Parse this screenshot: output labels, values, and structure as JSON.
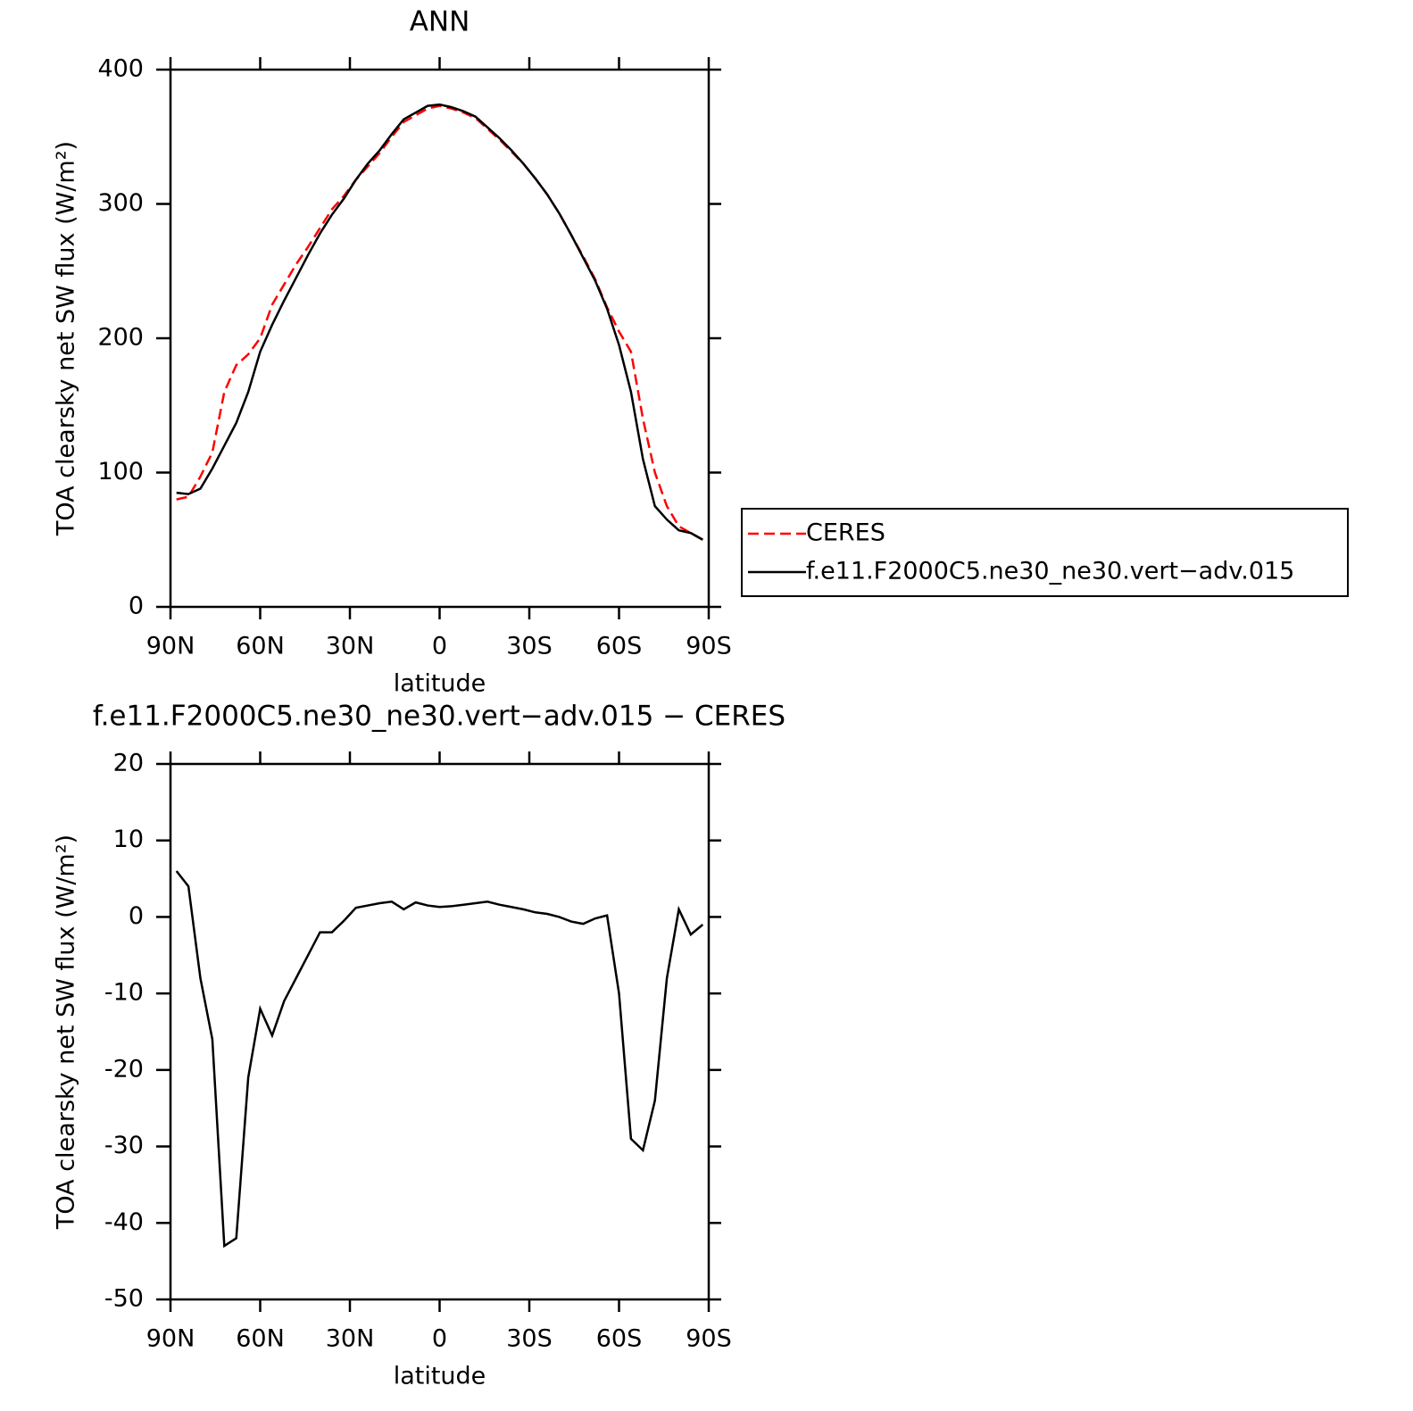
{
  "chart_data": [
    {
      "type": "line",
      "title": "ANN",
      "xlabel": "latitude",
      "ylabel": "TOA clearsky net SW flux (W/m²)",
      "x": [
        88,
        84,
        80,
        76,
        72,
        68,
        64,
        60,
        56,
        52,
        48,
        44,
        40,
        36,
        32,
        28,
        24,
        20,
        16,
        12,
        8,
        4,
        0,
        -4,
        -8,
        -12,
        -16,
        -20,
        -24,
        -28,
        -32,
        -36,
        -40,
        -44,
        -48,
        -52,
        -56,
        -60,
        -64,
        -68,
        -72,
        -76,
        -80,
        -84,
        -88
      ],
      "series": [
        {
          "name": "CERES",
          "color": "#ff0000",
          "linestyle": "dashed",
          "values": [
            80,
            82,
            97,
            115,
            160,
            180,
            188,
            200,
            225,
            240,
            255,
            268,
            282,
            296,
            306,
            318,
            328,
            338,
            350,
            361,
            366,
            371,
            373,
            371,
            368,
            364,
            356,
            348,
            339,
            330,
            319,
            307,
            293,
            277,
            261,
            244,
            223,
            205,
            190,
            140,
            100,
            75,
            60,
            55,
            50
          ]
        },
        {
          "name": "f.e11.F2000C5.ne30_ne30.vert−adv.015",
          "color": "#000000",
          "linestyle": "solid",
          "values": [
            85,
            84,
            88,
            103,
            120,
            137,
            160,
            190,
            210,
            228,
            245,
            262,
            278,
            292,
            304,
            318,
            330,
            340,
            352,
            363,
            368,
            373,
            374,
            372,
            369,
            365,
            357,
            349,
            340,
            330,
            319,
            307,
            293,
            277,
            260,
            243,
            222,
            195,
            160,
            110,
            75,
            65,
            57,
            55,
            50
          ]
        }
      ],
      "xlim": [
        90,
        -90
      ],
      "xticks": [
        {
          "value": 90,
          "label": "90N"
        },
        {
          "value": 60,
          "label": "60N"
        },
        {
          "value": 30,
          "label": "30N"
        },
        0,
        {
          "value": -30,
          "label": "30S"
        },
        {
          "value": -60,
          "label": "60S"
        },
        {
          "value": -90,
          "label": "90S"
        }
      ],
      "ylim": [
        0,
        400
      ],
      "yticks": [
        0,
        100,
        200,
        300,
        400
      ],
      "legend": "right"
    },
    {
      "type": "line",
      "title": "f.e11.F2000C5.ne30_ne30.vert−adv.015 − CERES",
      "xlabel": "latitude",
      "ylabel": "TOA clearsky net SW flux (W/m²)",
      "x": [
        88,
        84,
        80,
        76,
        72,
        68,
        64,
        60,
        56,
        52,
        48,
        44,
        40,
        36,
        32,
        28,
        24,
        20,
        16,
        12,
        8,
        4,
        0,
        -4,
        -8,
        -12,
        -16,
        -20,
        -24,
        -28,
        -32,
        -36,
        -40,
        -44,
        -48,
        -52,
        -56,
        -60,
        -64,
        -68,
        -72,
        -76,
        -80,
        -84,
        -88
      ],
      "values": [
        6,
        4,
        -8,
        -16,
        -43,
        -42,
        -21,
        -12,
        -15.5,
        -11,
        -8,
        -5,
        -2,
        -2,
        -0.5,
        1.2,
        1.5,
        1.8,
        2,
        1,
        1.9,
        1.5,
        1.3,
        1.4,
        1.6,
        1.8,
        2,
        1.6,
        1.3,
        1,
        0.6,
        0.4,
        0,
        -0.6,
        -0.9,
        -0.2,
        0.2,
        -10,
        -29,
        -30.5,
        -24,
        -8,
        1,
        -2.3,
        -1
      ],
      "color": "#000000",
      "linestyle": "solid",
      "xlim": [
        90,
        -90
      ],
      "xticks": [
        {
          "value": 90,
          "label": "90N"
        },
        {
          "value": 60,
          "label": "60N"
        },
        {
          "value": 30,
          "label": "30N"
        },
        0,
        {
          "value": -30,
          "label": "30S"
        },
        {
          "value": -60,
          "label": "60S"
        },
        {
          "value": -90,
          "label": "90S"
        }
      ],
      "ylim": [
        -50,
        20
      ],
      "yticks": [
        -50,
        -40,
        -30,
        -20,
        -10,
        0,
        10,
        20
      ]
    }
  ]
}
